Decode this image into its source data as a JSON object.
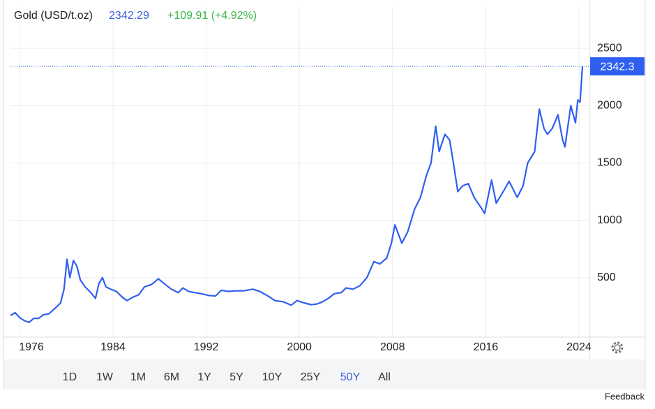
{
  "chart_data": {
    "type": "line",
    "title": "Gold (USD/t.oz)",
    "last_price": 2342.29,
    "change": "+109.91 (+4.92%)",
    "last_label": "2342.3",
    "color": "#2f5ff0",
    "grid": true,
    "xlim": [
      1975.2,
      2024.9
    ],
    "xticks": [
      1976,
      1984,
      1992,
      2000,
      2008,
      2016,
      2024
    ],
    "ylim": [
      0,
      2860
    ],
    "yticks": [
      500,
      1000,
      1500,
      2000,
      2500
    ],
    "series": [
      {
        "name": "Gold",
        "color": "#2f5ff0",
        "x": [
          1975.2,
          1975.6,
          1976.0,
          1976.4,
          1976.8,
          1977.2,
          1977.6,
          1978.0,
          1978.5,
          1979.0,
          1979.5,
          1979.8,
          1980.05,
          1980.3,
          1980.6,
          1980.9,
          1981.2,
          1981.6,
          1982.0,
          1982.5,
          1982.8,
          1983.1,
          1983.4,
          1983.8,
          1984.3,
          1984.8,
          1985.2,
          1985.7,
          1986.2,
          1986.7,
          1987.3,
          1987.9,
          1988.5,
          1989.0,
          1989.6,
          1990.0,
          1990.5,
          1991.0,
          1991.6,
          1992.2,
          1992.8,
          1993.3,
          1993.9,
          1994.5,
          1995.2,
          1996.0,
          1996.6,
          1997.3,
          1997.9,
          1998.6,
          1999.3,
          1999.8,
          2000.4,
          2001.0,
          2001.5,
          2002.0,
          2002.5,
          2003.0,
          2003.6,
          2004.0,
          2004.6,
          2005.2,
          2005.8,
          2006.4,
          2006.9,
          2007.5,
          2007.9,
          2008.2,
          2008.8,
          2009.3,
          2009.9,
          2010.4,
          2010.9,
          2011.3,
          2011.7,
          2012.0,
          2012.5,
          2012.9,
          2013.3,
          2013.6,
          2014.0,
          2014.5,
          2015.0,
          2015.6,
          2015.9,
          2016.5,
          2016.9,
          2017.5,
          2018.0,
          2018.7,
          2019.2,
          2019.6,
          2020.2,
          2020.6,
          2021.0,
          2021.3,
          2021.7,
          2022.2,
          2022.6,
          2022.8,
          2023.3,
          2023.7,
          2023.9,
          2024.1,
          2024.3
        ],
        "values": [
          170,
          195,
          150,
          125,
          110,
          145,
          145,
          175,
          185,
          230,
          280,
          400,
          660,
          500,
          650,
          600,
          480,
          420,
          380,
          320,
          450,
          500,
          420,
          400,
          380,
          330,
          300,
          330,
          350,
          420,
          440,
          490,
          440,
          400,
          370,
          410,
          380,
          370,
          360,
          345,
          340,
          390,
          380,
          385,
          385,
          400,
          380,
          340,
          300,
          290,
          260,
          300,
          280,
          265,
          270,
          290,
          320,
          360,
          370,
          410,
          400,
          430,
          500,
          640,
          620,
          670,
          800,
          960,
          800,
          900,
          1100,
          1200,
          1390,
          1500,
          1820,
          1600,
          1750,
          1700,
          1450,
          1250,
          1300,
          1320,
          1200,
          1110,
          1060,
          1350,
          1150,
          1250,
          1340,
          1200,
          1300,
          1500,
          1600,
          1970,
          1800,
          1750,
          1800,
          1920,
          1700,
          1640,
          2000,
          1850,
          2050,
          2030,
          2342.29
        ]
      }
    ],
    "ranges": [
      "1D",
      "1W",
      "1M",
      "6M",
      "1Y",
      "5Y",
      "10Y",
      "25Y",
      "50Y",
      "All"
    ],
    "selected_range": 8,
    "feedback": "Feedback"
  }
}
